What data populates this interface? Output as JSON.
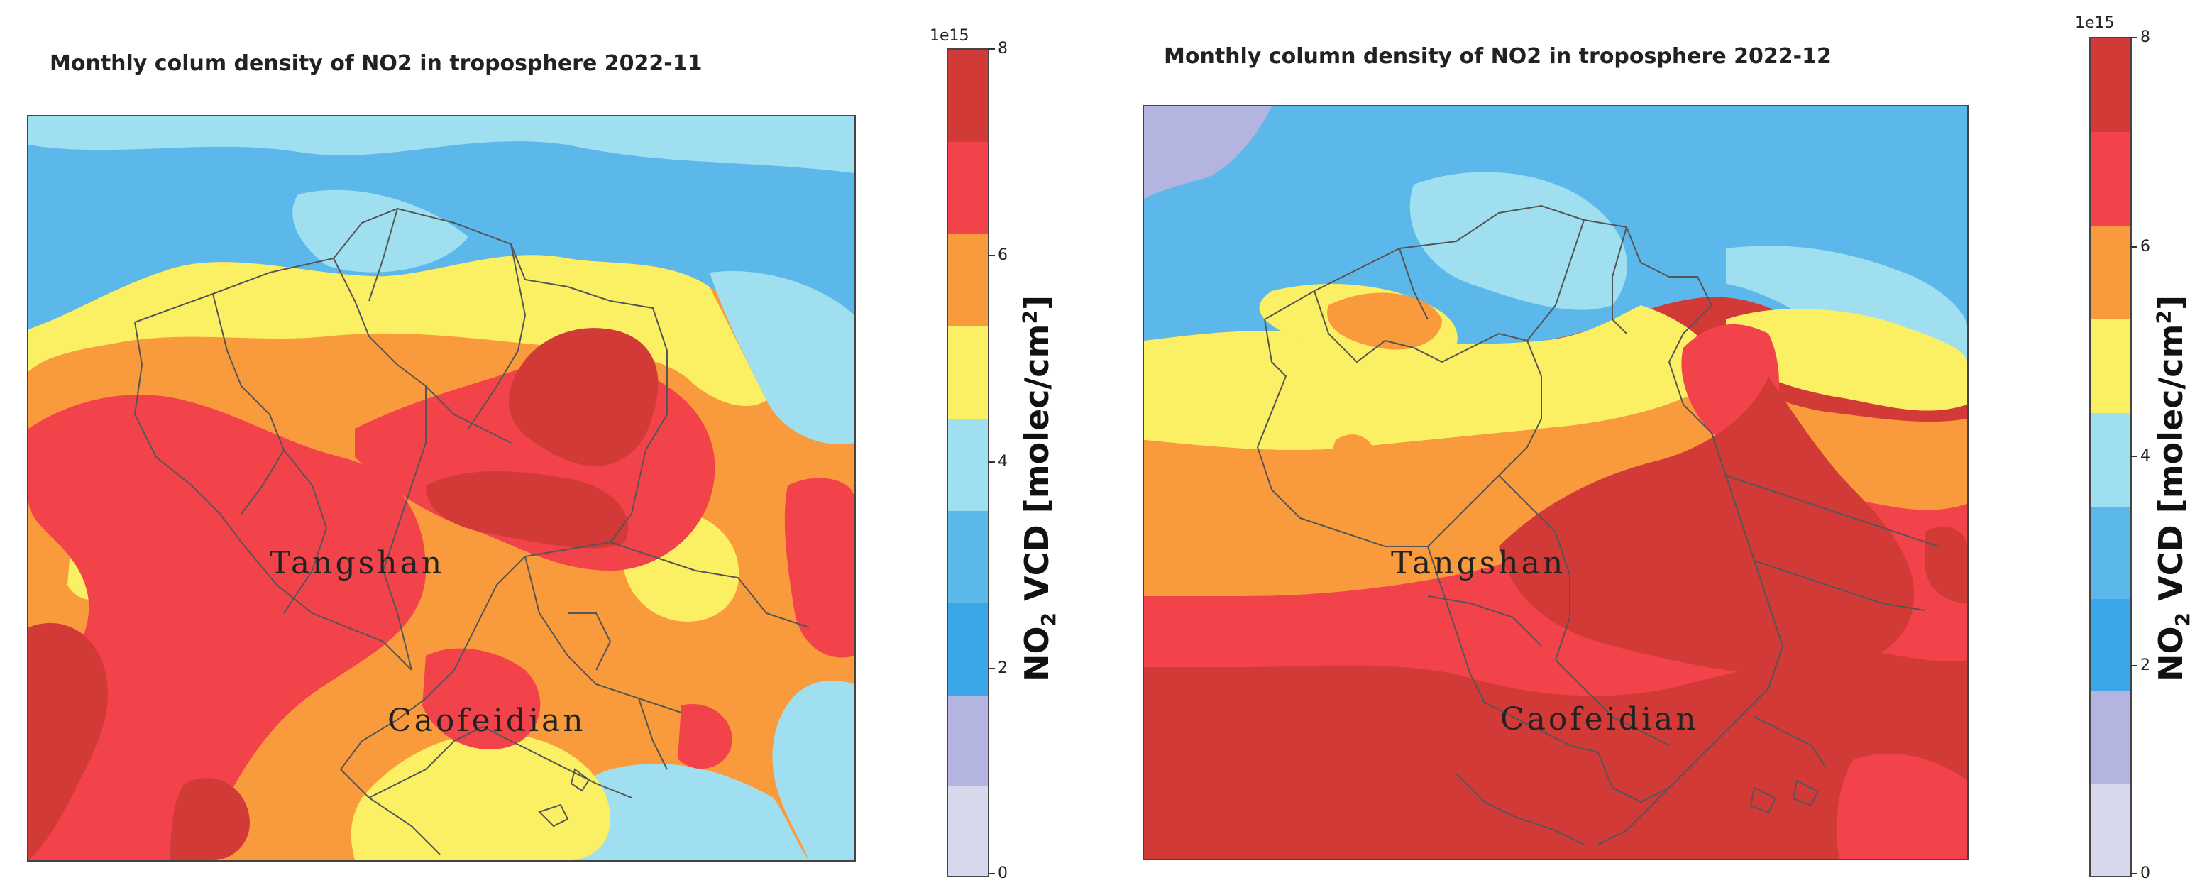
{
  "panels": [
    {
      "title": "Monthly colum density of NO2 in troposphere  2022-11",
      "labels": {
        "city1": "Tangshan",
        "city2": "Caofeidian"
      }
    },
    {
      "title": "Monthly column density of NO2 in troposphere  2022-12",
      "labels": {
        "city1": "Tangshan",
        "city2": "Caofeidian"
      }
    }
  ],
  "colorbar": {
    "exponent": "1e15",
    "ticks": [
      "0",
      "2",
      "4",
      "6",
      "8"
    ],
    "label_main": "NO",
    "label_sub": "2",
    "label_mid": " VCD [molec/cm",
    "label_sup": "2",
    "label_end": "]",
    "levels": [
      "#d8d8ec",
      "#b3b4df",
      "#3aa8e8",
      "#5cb8ea",
      "#9fdff0",
      "#fbef63",
      "#f99a3c",
      "#f3434a",
      "#d13a37"
    ]
  },
  "chart_data": {
    "type": "heatmap",
    "variable": "NO2 VCD",
    "units": "molec/cm2 (x1e15)",
    "range": [
      0,
      8
    ],
    "panels": [
      {
        "period": "2022-11",
        "places": [
          "Tangshan",
          "Caofeidian"
        ]
      },
      {
        "period": "2022-12",
        "places": [
          "Tangshan",
          "Caofeidian"
        ]
      }
    ]
  }
}
